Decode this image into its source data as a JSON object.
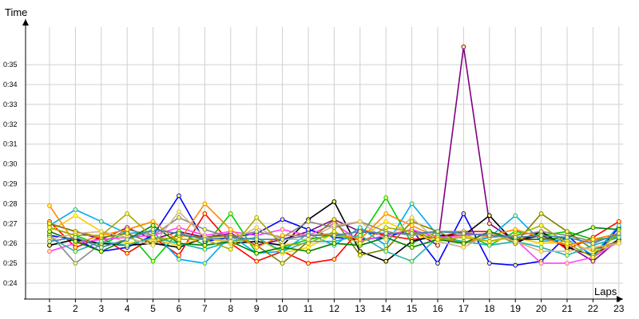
{
  "chart_data": {
    "type": "line",
    "title": "",
    "ylabel": "Time",
    "xlabel": "Laps",
    "grid": true,
    "legend": "none",
    "y_ticks": [
      "0:24",
      "0:25",
      "0:26",
      "0:27",
      "0:28",
      "0:29",
      "0:30",
      "0:31",
      "0:32",
      "0:33",
      "0:34",
      "0:35"
    ],
    "y_unit": "seconds",
    "ylim": [
      23.2,
      36.4
    ],
    "categories": [
      "1",
      "2",
      "3",
      "4",
      "5",
      "6",
      "7",
      "8",
      "9",
      "10",
      "11",
      "12",
      "13",
      "14",
      "15",
      "16",
      "17",
      "18",
      "19",
      "20",
      "21",
      "22",
      "23"
    ],
    "series": [
      {
        "color": "#800080",
        "values": [
          27.0,
          26.6,
          26.2,
          26.8,
          26.2,
          26.6,
          26.3,
          26.5,
          25.9,
          26.2,
          26.6,
          27.2,
          26.6,
          26.4,
          26.7,
          25.9,
          35.9,
          27.0,
          26.1,
          26.4,
          25.9,
          25.1,
          26.2
        ]
      },
      {
        "color": "#0000ff",
        "values": [
          26.4,
          26.2,
          25.6,
          25.8,
          26.4,
          28.4,
          26.1,
          26.3,
          26.5,
          27.2,
          26.7,
          26.3,
          26.2,
          26.3,
          26.7,
          25.0,
          27.5,
          25.0,
          24.9,
          25.1,
          26.4,
          25.3,
          26.8
        ]
      },
      {
        "color": "#ff0000",
        "values": [
          27.1,
          25.8,
          26.3,
          25.5,
          26.3,
          25.4,
          27.5,
          26.0,
          25.1,
          25.6,
          25.0,
          25.2,
          26.7,
          26.4,
          26.2,
          26.3,
          26.6,
          26.6,
          26.1,
          26.6,
          25.7,
          26.3,
          27.1
        ]
      },
      {
        "color": "#00cc00",
        "values": [
          26.8,
          26.4,
          25.9,
          26.6,
          25.1,
          26.6,
          25.9,
          27.5,
          25.5,
          25.8,
          26.2,
          26.4,
          26.3,
          28.3,
          26.0,
          26.6,
          26.5,
          25.9,
          26.6,
          26.4,
          26.6,
          26.2,
          26.3
        ]
      },
      {
        "color": "#000000",
        "values": [
          25.9,
          26.2,
          26.0,
          25.9,
          26.0,
          25.8,
          26.3,
          26.0,
          26.1,
          25.9,
          27.2,
          28.1,
          25.6,
          25.1,
          26.1,
          26.4,
          26.4,
          27.4,
          26.0,
          26.6,
          25.8,
          25.4,
          26.2
        ]
      },
      {
        "color": "#00aaee",
        "values": [
          26.9,
          27.7,
          27.1,
          26.5,
          26.6,
          25.2,
          25.0,
          26.4,
          25.5,
          25.6,
          26.5,
          25.9,
          26.8,
          25.9,
          28.0,
          26.4,
          26.0,
          26.3,
          27.4,
          26.1,
          26.2,
          25.4,
          26.9
        ]
      },
      {
        "color": "#ffcc00",
        "values": [
          26.6,
          27.4,
          26.6,
          26.0,
          26.2,
          25.9,
          26.3,
          26.0,
          26.3,
          25.5,
          25.8,
          26.5,
          26.3,
          27.1,
          26.5,
          26.1,
          26.4,
          26.1,
          26.3,
          26.0,
          26.1,
          25.6,
          26.0
        ]
      },
      {
        "color": "#ff44ff",
        "values": [
          25.6,
          26.0,
          26.2,
          26.3,
          26.4,
          26.8,
          26.4,
          26.6,
          26.4,
          26.7,
          26.4,
          27.0,
          26.1,
          26.4,
          26.7,
          26.3,
          26.4,
          26.5,
          26.2,
          25.0,
          25.0,
          25.3,
          26.1
        ]
      },
      {
        "color": "#888888",
        "values": [
          26.5,
          25.0,
          26.0,
          26.7,
          26.4,
          27.3,
          26.7,
          26.3,
          26.6,
          26.3,
          27.1,
          26.8,
          27.1,
          26.6,
          26.4,
          26.6,
          26.6,
          26.3,
          26.4,
          26.6,
          26.4,
          26.1,
          26.4
        ]
      },
      {
        "color": "#808000",
        "values": [
          27.0,
          26.6,
          26.3,
          26.5,
          26.0,
          26.4,
          26.3,
          26.4,
          25.9,
          25.0,
          26.1,
          27.2,
          25.4,
          25.7,
          27.1,
          26.6,
          26.0,
          26.6,
          26.0,
          27.5,
          26.6,
          25.7,
          26.1
        ]
      },
      {
        "color": "#20b2aa",
        "values": [
          26.3,
          25.6,
          26.1,
          25.9,
          26.3,
          26.0,
          25.7,
          26.1,
          26.3,
          25.6,
          26.1,
          26.1,
          26.4,
          25.6,
          25.1,
          26.3,
          26.1,
          25.9,
          26.1,
          25.8,
          25.4,
          25.9,
          26.3
        ]
      },
      {
        "color": "#ff8800",
        "values": [
          27.9,
          26.0,
          26.4,
          26.7,
          27.1,
          26.1,
          28.0,
          26.7,
          25.8,
          26.4,
          26.4,
          26.5,
          26.2,
          27.5,
          26.9,
          26.3,
          26.0,
          26.4,
          26.7,
          26.3,
          25.9,
          26.2,
          26.5
        ]
      },
      {
        "color": "#008000",
        "values": [
          26.6,
          26.1,
          25.6,
          26.2,
          26.9,
          26.0,
          25.9,
          26.1,
          25.5,
          25.8,
          25.6,
          26.0,
          25.9,
          26.3,
          25.8,
          26.2,
          26.0,
          26.6,
          26.2,
          26.2,
          26.3,
          26.8,
          26.7
        ]
      },
      {
        "color": "#d2b48c",
        "values": [
          26.2,
          26.5,
          26.6,
          26.3,
          25.9,
          27.6,
          26.3,
          26.1,
          26.8,
          26.2,
          26.2,
          26.9,
          27.1,
          26.2,
          27.3,
          26.1,
          25.8,
          26.5,
          26.1,
          25.6,
          25.6,
          25.8,
          26.0
        ]
      },
      {
        "color": "#aaaa00",
        "values": [
          26.8,
          26.4,
          26.4,
          27.5,
          26.3,
          26.2,
          26.2,
          25.7,
          27.3,
          25.9,
          26.0,
          26.6,
          26.0,
          26.8,
          26.6,
          26.2,
          26.3,
          26.1,
          26.4,
          26.9,
          26.0,
          25.3,
          26.6
        ]
      },
      {
        "color": "#4682b4",
        "values": [
          26.1,
          26.3,
          25.8,
          26.2,
          26.7,
          26.5,
          26.2,
          26.3,
          26.2,
          26.2,
          26.4,
          26.4,
          26.6,
          26.5,
          26.5,
          26.6,
          26.5,
          26.4,
          26.3,
          26.4,
          26.3,
          26.0,
          26.5
        ]
      }
    ]
  }
}
